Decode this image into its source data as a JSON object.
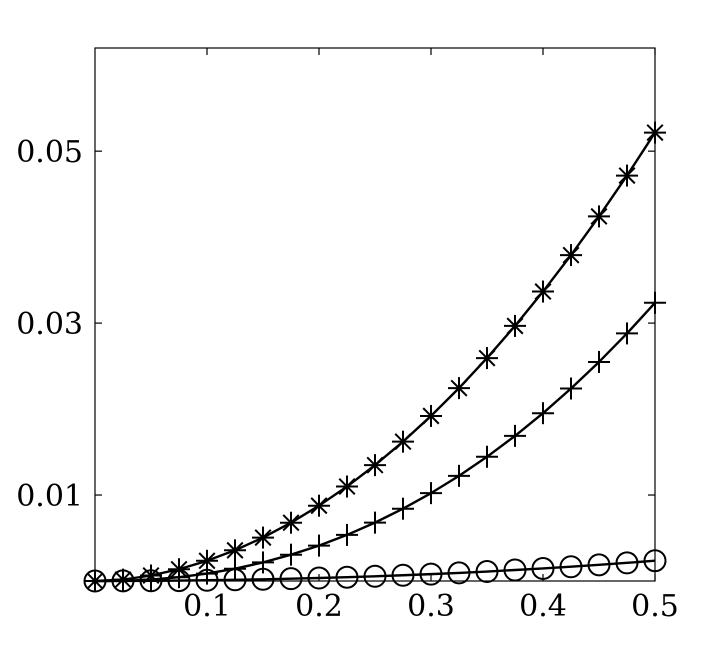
{
  "chart_data": {
    "type": "line",
    "title": "",
    "xlabel": "",
    "ylabel": "",
    "xlim": [
      0,
      0.5
    ],
    "ylim": [
      0,
      0.062
    ],
    "grid": false,
    "legend": "none",
    "x_ticks": [
      {
        "value": 0.1,
        "label": "0.1"
      },
      {
        "value": 0.2,
        "label": "0.2"
      },
      {
        "value": 0.3,
        "label": "0.3"
      },
      {
        "value": 0.4,
        "label": "0.4"
      },
      {
        "value": 0.5,
        "label": "0.5"
      }
    ],
    "y_ticks": [
      {
        "value": 0.01,
        "label": "0.01"
      },
      {
        "value": 0.03,
        "label": "0.03"
      },
      {
        "value": 0.05,
        "label": "0.05"
      }
    ],
    "x": [
      0,
      0.025,
      0.05,
      0.075,
      0.1,
      0.125,
      0.15,
      0.175,
      0.2,
      0.225,
      0.25,
      0.275,
      0.3,
      0.325,
      0.35,
      0.375,
      0.4,
      0.425,
      0.45,
      0.475,
      0.5
    ],
    "series": [
      {
        "marker": "asterisk",
        "values": [
          0,
          0.00016,
          0.00064,
          0.00137,
          0.00235,
          0.00357,
          0.00505,
          0.00678,
          0.00876,
          0.01099,
          0.01348,
          0.01621,
          0.0192,
          0.02244,
          0.02593,
          0.02967,
          0.03367,
          0.03791,
          0.04241,
          0.04716,
          0.05216
        ]
      },
      {
        "marker": "plus",
        "values": [
          0,
          2e-05,
          0.00016,
          0.00044,
          0.00086,
          0.00143,
          0.00216,
          0.00306,
          0.00412,
          0.00536,
          0.00679,
          0.00841,
          0.01022,
          0.01223,
          0.01445,
          0.01688,
          0.01952,
          0.02239,
          0.02548,
          0.0288,
          0.03236
        ]
      },
      {
        "marker": "circle",
        "values": [
          0,
          1e-05,
          3e-05,
          5e-05,
          9e-05,
          0.00014,
          0.0002,
          0.00027,
          0.00035,
          0.00044,
          0.00055,
          0.00067,
          0.0008,
          0.00094,
          0.0011,
          0.00128,
          0.00146,
          0.00166,
          0.00188,
          0.00211,
          0.00236
        ]
      }
    ]
  }
}
